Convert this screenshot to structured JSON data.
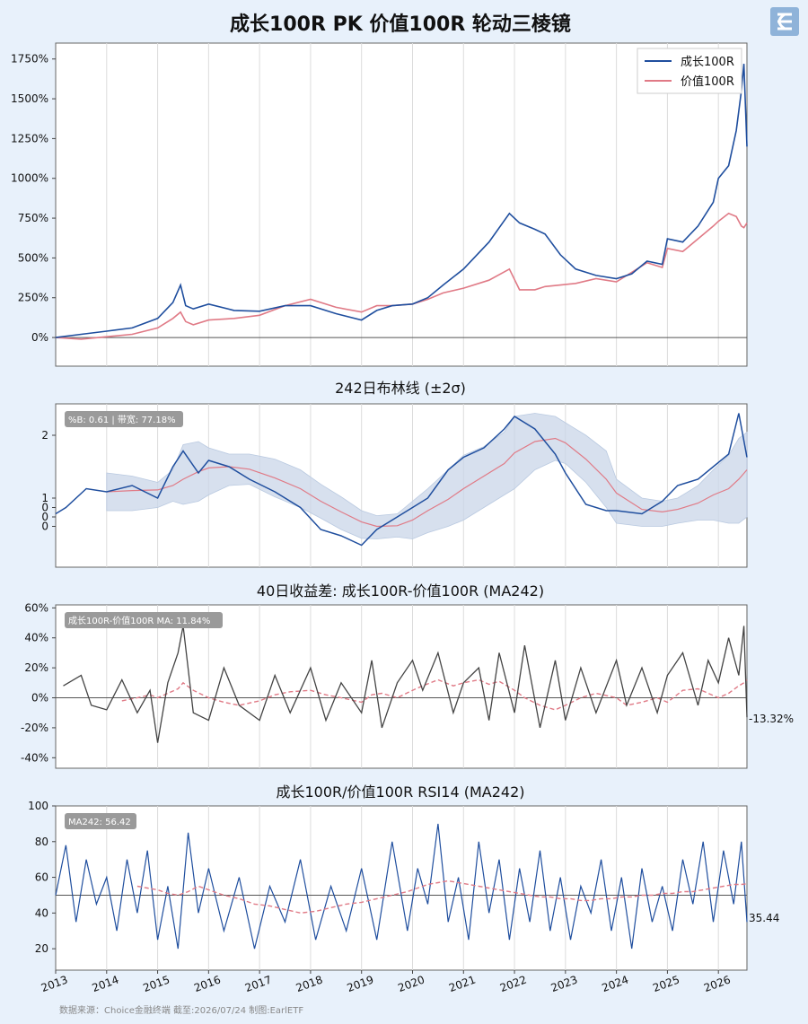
{
  "title": "成长100R PK 价值100R 轮动三棱镜",
  "colors": {
    "growth": "#1f4e9e",
    "value": "#e07a86",
    "spread": "#444444",
    "band": "#c9d6e8"
  },
  "footer": "数据来源：Choice金融终端 截至:2026/07/24 制图:EarlETF",
  "x_ticks": [
    "2013",
    "2014",
    "2015",
    "2016",
    "2017",
    "2018",
    "2019",
    "2020",
    "2021",
    "2022",
    "2023",
    "2024",
    "2025",
    "2026"
  ],
  "chart_data": [
    {
      "type": "line",
      "title": "",
      "legend": {
        "position": "top-right"
      },
      "y_ticks": [
        "1750%",
        "1500%",
        "1250%",
        "1000%",
        "750%",
        "500%",
        "250%",
        "0%"
      ],
      "ylim": [
        -180,
        1850
      ],
      "x": [
        2013.0,
        2013.5,
        2014.0,
        2014.5,
        2015.0,
        2015.3,
        2015.45,
        2015.55,
        2015.7,
        2016.0,
        2016.5,
        2017.0,
        2017.5,
        2018.0,
        2018.5,
        2019.0,
        2019.3,
        2019.6,
        2020.0,
        2020.3,
        2020.6,
        2021.0,
        2021.5,
        2021.9,
        2022.1,
        2022.4,
        2022.6,
        2022.9,
        2023.2,
        2023.6,
        2024.0,
        2024.3,
        2024.6,
        2024.9,
        2025.0,
        2025.3,
        2025.6,
        2025.9,
        2026.0,
        2026.2,
        2026.35,
        2026.45,
        2026.5,
        2026.56
      ],
      "series": [
        {
          "name": "成长100R",
          "values": [
            0,
            20,
            40,
            60,
            120,
            220,
            330,
            200,
            180,
            210,
            170,
            165,
            200,
            200,
            150,
            110,
            170,
            200,
            210,
            250,
            330,
            430,
            600,
            780,
            720,
            680,
            650,
            520,
            430,
            390,
            370,
            400,
            480,
            460,
            620,
            600,
            700,
            850,
            1000,
            1080,
            1300,
            1550,
            1720,
            1200
          ]
        },
        {
          "name": "价值100R",
          "values": [
            0,
            -10,
            5,
            20,
            60,
            120,
            160,
            100,
            80,
            110,
            120,
            140,
            200,
            240,
            190,
            160,
            200,
            200,
            210,
            240,
            280,
            310,
            360,
            430,
            300,
            300,
            320,
            330,
            340,
            370,
            350,
            410,
            470,
            440,
            560,
            540,
            620,
            700,
            730,
            780,
            760,
            700,
            690,
            720
          ]
        }
      ]
    },
    {
      "type": "line",
      "title": "242日布林线 (±2σ)",
      "annotation": "%B: 0.61 | 带宽: 77.18%",
      "y_ticks": [
        "2",
        "1",
        "0",
        "0",
        "0"
      ],
      "ylim": [
        -0.1,
        2.5
      ],
      "x": [
        2013.0,
        2013.2,
        2013.6,
        2014.0,
        2014.5,
        2015.0,
        2015.3,
        2015.5,
        2015.8,
        2016.0,
        2016.4,
        2016.8,
        2017.3,
        2017.8,
        2018.2,
        2018.6,
        2019.0,
        2019.3,
        2019.7,
        2020.0,
        2020.3,
        2020.7,
        2021.0,
        2021.4,
        2021.8,
        2022.0,
        2022.4,
        2022.8,
        2023.0,
        2023.4,
        2023.8,
        2024.0,
        2024.5,
        2024.9,
        2025.2,
        2025.6,
        2025.9,
        2026.2,
        2026.4,
        2026.56
      ],
      "series": [
        {
          "name": "",
          "values": [
            0.75,
            0.85,
            1.15,
            1.1,
            1.2,
            1.0,
            1.5,
            1.75,
            1.4,
            1.6,
            1.5,
            1.3,
            1.1,
            0.85,
            0.5,
            0.4,
            0.25,
            0.5,
            0.7,
            0.85,
            1.0,
            1.45,
            1.65,
            1.8,
            2.1,
            2.3,
            2.1,
            1.7,
            1.4,
            0.9,
            0.8,
            0.8,
            0.75,
            0.95,
            1.2,
            1.3,
            1.5,
            1.7,
            2.35,
            1.65
          ]
        },
        {
          "name": "",
          "values": [
            null,
            null,
            null,
            1.1,
            1.12,
            1.13,
            1.2,
            1.3,
            1.42,
            1.48,
            1.5,
            1.46,
            1.32,
            1.15,
            0.95,
            0.78,
            0.62,
            0.55,
            0.56,
            0.65,
            0.8,
            0.98,
            1.15,
            1.35,
            1.55,
            1.72,
            1.9,
            1.95,
            1.88,
            1.62,
            1.3,
            1.08,
            0.82,
            0.78,
            0.82,
            0.92,
            1.05,
            1.15,
            1.3,
            1.45
          ]
        },
        {
          "name": "",
          "values": [
            null,
            null,
            null,
            1.4,
            1.35,
            1.25,
            1.45,
            1.85,
            1.9,
            1.8,
            1.7,
            1.7,
            1.62,
            1.45,
            1.22,
            1.02,
            0.8,
            0.72,
            0.75,
            0.95,
            1.15,
            1.45,
            1.68,
            1.82,
            2.05,
            2.3,
            2.35,
            2.3,
            2.2,
            2.0,
            1.75,
            1.3,
            1.0,
            0.95,
            1.0,
            1.2,
            1.45,
            1.68,
            1.95,
            2.05
          ]
        },
        {
          "name": "",
          "values": [
            null,
            null,
            null,
            0.8,
            0.8,
            0.85,
            0.95,
            0.9,
            0.95,
            1.05,
            1.2,
            1.22,
            1.02,
            0.85,
            0.68,
            0.5,
            0.36,
            0.35,
            0.38,
            0.35,
            0.45,
            0.55,
            0.65,
            0.85,
            1.05,
            1.15,
            1.45,
            1.6,
            1.55,
            1.25,
            0.85,
            0.6,
            0.55,
            0.55,
            0.6,
            0.65,
            0.65,
            0.6,
            0.6,
            0.7
          ]
        }
      ]
    },
    {
      "type": "line",
      "title": "40日收益差: 成长100R-价值100R (MA242)",
      "annotation": "成长100R-价值100R MA: 11.84%",
      "last_value_label": "-13.32%",
      "y_ticks": [
        "60%",
        "40%",
        "20%",
        "0%",
        "-20%",
        "-40%"
      ],
      "ylim": [
        -47,
        62
      ],
      "x": [
        2013.15,
        2013.5,
        2013.7,
        2014.0,
        2014.3,
        2014.6,
        2014.85,
        2015.0,
        2015.2,
        2015.4,
        2015.5,
        2015.7,
        2016.0,
        2016.3,
        2016.6,
        2017.0,
        2017.3,
        2017.6,
        2018.0,
        2018.3,
        2018.6,
        2019.0,
        2019.2,
        2019.4,
        2019.7,
        2020.0,
        2020.2,
        2020.5,
        2020.8,
        2021.0,
        2021.3,
        2021.5,
        2021.7,
        2022.0,
        2022.2,
        2022.5,
        2022.8,
        2023.0,
        2023.3,
        2023.6,
        2024.0,
        2024.2,
        2024.5,
        2024.8,
        2025.0,
        2025.3,
        2025.6,
        2025.8,
        2026.0,
        2026.2,
        2026.4,
        2026.5,
        2026.56
      ],
      "series": [
        {
          "name": "",
          "values": [
            8,
            15,
            -5,
            -8,
            12,
            -10,
            5,
            -30,
            10,
            30,
            48,
            -10,
            -15,
            20,
            -5,
            -15,
            15,
            -10,
            20,
            -15,
            10,
            -10,
            25,
            -20,
            10,
            25,
            5,
            30,
            -10,
            10,
            20,
            -15,
            30,
            -10,
            35,
            -20,
            25,
            -15,
            20,
            -10,
            25,
            -5,
            20,
            -10,
            15,
            30,
            -5,
            25,
            10,
            40,
            15,
            48,
            -13
          ]
        },
        {
          "name": "",
          "values": [
            null,
            null,
            null,
            null,
            -2,
            0,
            2,
            0,
            3,
            6,
            10,
            5,
            0,
            -3,
            -5,
            -2,
            2,
            4,
            5,
            2,
            0,
            -3,
            2,
            3,
            0,
            5,
            8,
            12,
            8,
            10,
            12,
            9,
            11,
            5,
            0,
            -5,
            -8,
            -5,
            0,
            3,
            0,
            -5,
            -3,
            0,
            -3,
            5,
            6,
            3,
            0,
            3,
            8,
            10,
            12
          ]
        }
      ]
    },
    {
      "type": "line",
      "title": "成长100R/价值100R RSI14 (MA242)",
      "annotation": "MA242: 56.42",
      "last_value_label": "35.44",
      "y_ticks": [
        "100",
        "80",
        "60",
        "40",
        "20"
      ],
      "ylim": [
        8,
        100
      ],
      "x": [
        2013.0,
        2013.2,
        2013.4,
        2013.6,
        2013.8,
        2014.0,
        2014.2,
        2014.4,
        2014.6,
        2014.8,
        2015.0,
        2015.2,
        2015.4,
        2015.6,
        2015.8,
        2016.0,
        2016.3,
        2016.6,
        2016.9,
        2017.2,
        2017.5,
        2017.8,
        2018.1,
        2018.4,
        2018.7,
        2019.0,
        2019.3,
        2019.6,
        2019.9,
        2020.1,
        2020.3,
        2020.5,
        2020.7,
        2020.9,
        2021.1,
        2021.3,
        2021.5,
        2021.7,
        2021.9,
        2022.1,
        2022.3,
        2022.5,
        2022.7,
        2022.9,
        2023.1,
        2023.3,
        2023.5,
        2023.7,
        2023.9,
        2024.1,
        2024.3,
        2024.5,
        2024.7,
        2024.9,
        2025.1,
        2025.3,
        2025.5,
        2025.7,
        2025.9,
        2026.1,
        2026.3,
        2026.45,
        2026.56
      ],
      "series": [
        {
          "name": "",
          "values": [
            50,
            78,
            35,
            70,
            45,
            60,
            30,
            70,
            40,
            75,
            25,
            55,
            20,
            85,
            40,
            65,
            30,
            60,
            20,
            55,
            35,
            70,
            25,
            55,
            30,
            65,
            25,
            80,
            30,
            65,
            45,
            90,
            35,
            60,
            25,
            80,
            40,
            70,
            25,
            65,
            35,
            75,
            30,
            60,
            25,
            55,
            40,
            70,
            30,
            60,
            20,
            65,
            35,
            55,
            30,
            70,
            45,
            80,
            35,
            75,
            45,
            80,
            35
          ]
        },
        {
          "name": "",
          "values": [
            null,
            null,
            null,
            null,
            null,
            null,
            null,
            null,
            55,
            54,
            53,
            51,
            50,
            52,
            55,
            53,
            50,
            48,
            45,
            44,
            42,
            40,
            41,
            43,
            45,
            46,
            48,
            50,
            52,
            54,
            56,
            57,
            58,
            57,
            56,
            55,
            54,
            53,
            52,
            51,
            50,
            49,
            49,
            48,
            48,
            47,
            47,
            48,
            48,
            49,
            49,
            50,
            50,
            51,
            51,
            52,
            52,
            53,
            54,
            55,
            56,
            56,
            56.42
          ]
        }
      ]
    }
  ]
}
